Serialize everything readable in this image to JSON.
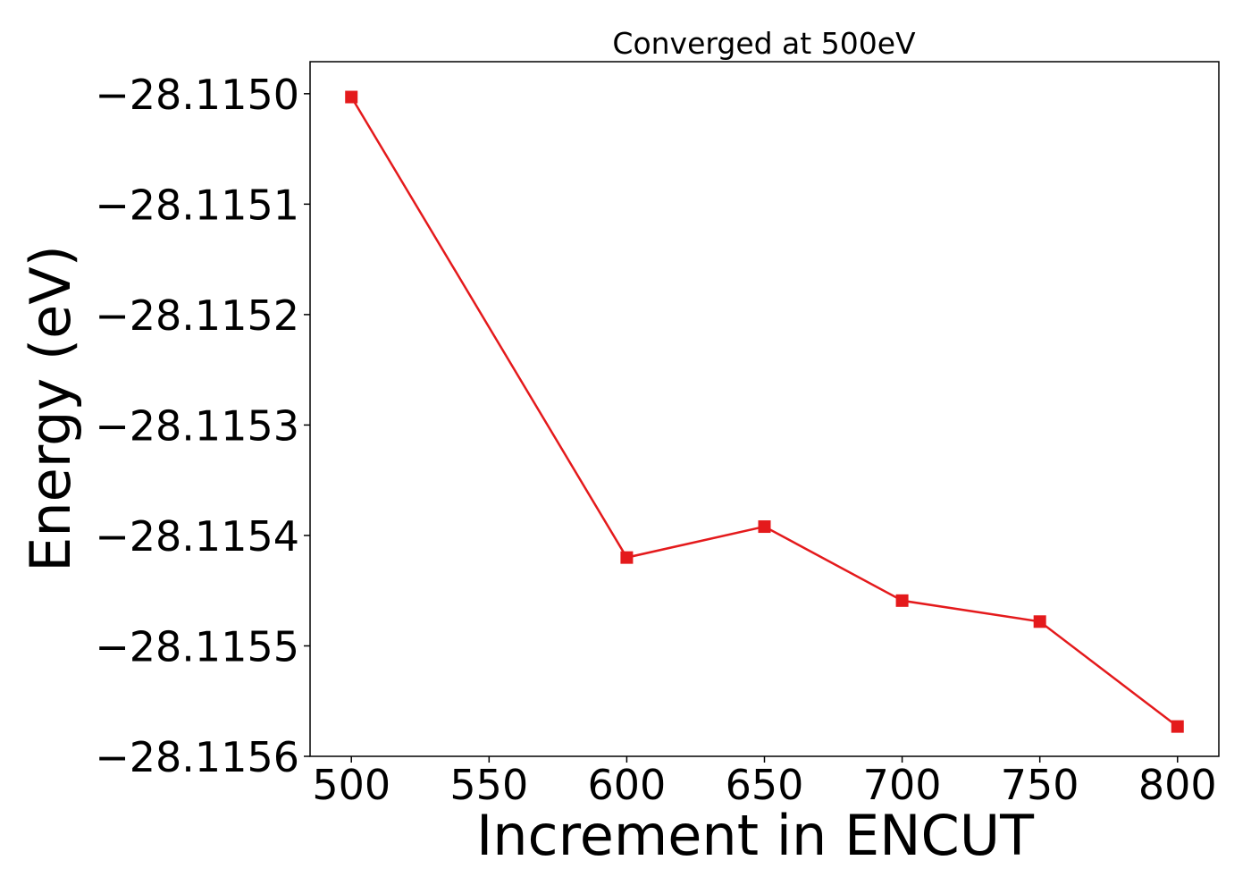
{
  "chart_data": {
    "type": "line",
    "title": "Converged at 500eV",
    "xlabel": "Increment in ENCUT",
    "ylabel": "Energy (eV)",
    "x": [
      500,
      600,
      650,
      700,
      750,
      800
    ],
    "series": [
      {
        "values": [
          -28.115003,
          -28.11542,
          -28.115392,
          -28.115459,
          -28.115478,
          -28.115573
        ]
      }
    ],
    "xticks": [
      500,
      550,
      600,
      650,
      700,
      750,
      800
    ],
    "xtick_labels": [
      "500",
      "550",
      "600",
      "650",
      "700",
      "750",
      "800"
    ],
    "yticks": [
      -28.115,
      -28.1151,
      -28.1152,
      -28.1153,
      -28.1154,
      -28.1155,
      -28.1156
    ],
    "ytick_labels": [
      "−28.1150",
      "−28.1151",
      "−28.1152",
      "−28.1153",
      "−28.1154",
      "−28.1155",
      "−28.1156"
    ],
    "xlim": [
      485,
      815
    ],
    "ylim": [
      -28.1156,
      -28.114971
    ],
    "grid": false,
    "legend": "none",
    "line_color": "#e41a1c",
    "marker": "square"
  }
}
